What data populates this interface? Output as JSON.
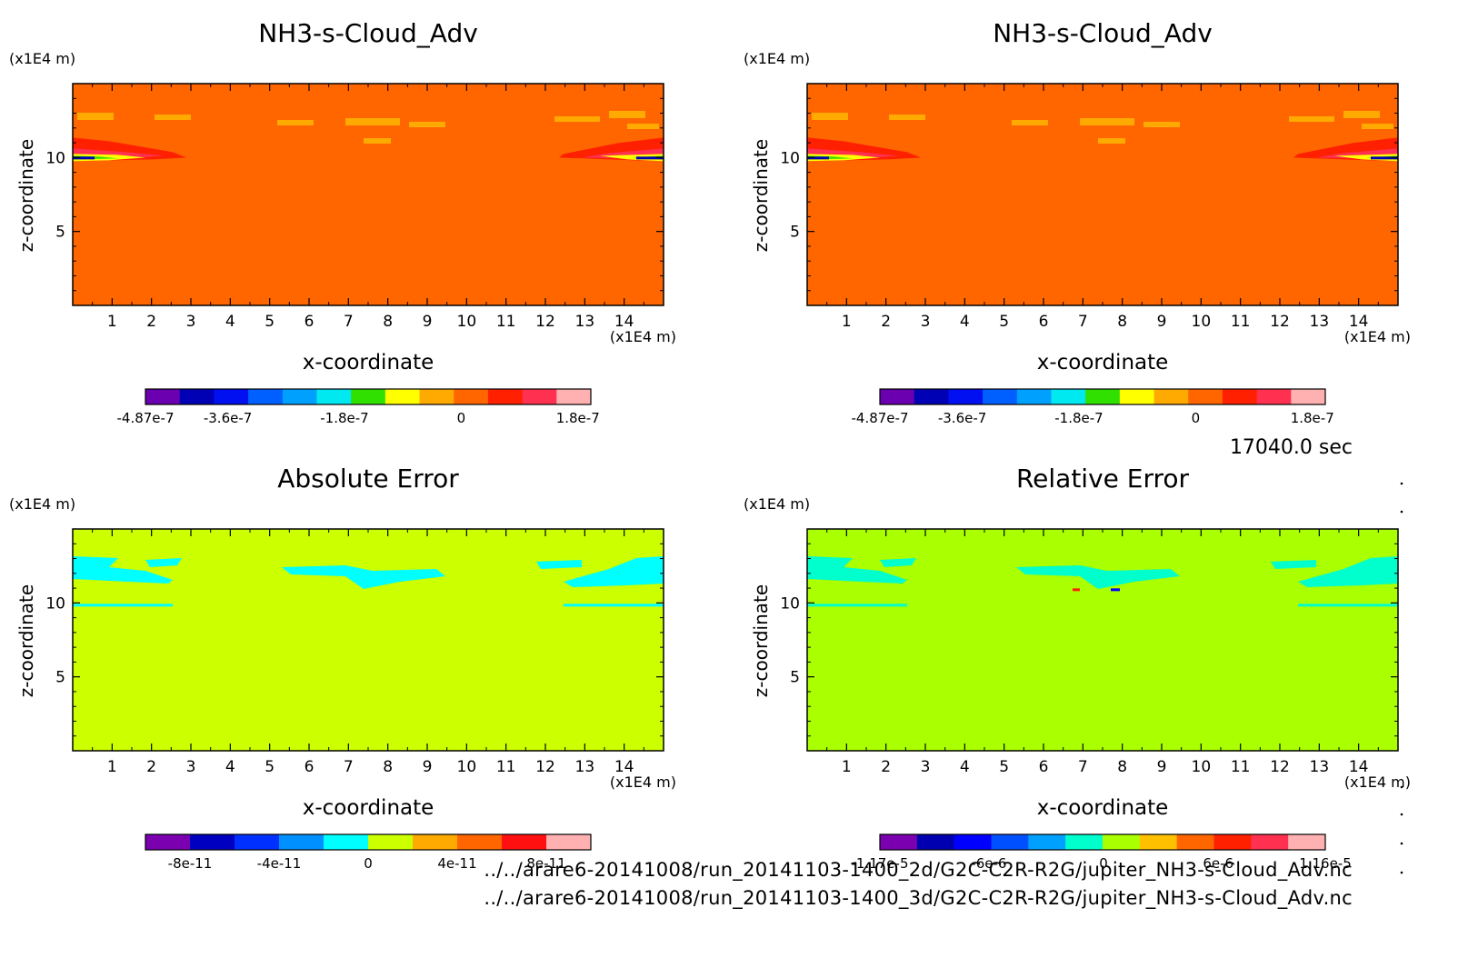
{
  "time_label": "17040.0 sec",
  "footer_lines": [
    "../../arare6-20141008/run_20141103-1400_2d/G2C-C2R-R2G/jupiter_NH3-s-Cloud_Adv.nc",
    "../../arare6-20141008/run_20141103-1400_3d/G2C-C2R-R2G/jupiter_NH3-s-Cloud_Adv.nc"
  ],
  "chart_data": [
    {
      "type": "heatmap",
      "title": "NH3-s-Cloud_Adv",
      "xlabel": "x-coordinate",
      "ylabel": "z-coordinate",
      "x_unit": "(x1E4 m)",
      "y_unit": "(x1E4 m)",
      "xlim": [
        0,
        15
      ],
      "ylim": [
        0,
        15
      ],
      "x_ticks": [
        1,
        2,
        3,
        4,
        5,
        6,
        7,
        8,
        9,
        10,
        11,
        12,
        13,
        14
      ],
      "y_ticks": [
        5,
        10
      ],
      "background_color": "#ff6600",
      "colorbar": {
        "colors": [
          "#6a00b0",
          "#0000b4",
          "#0010f0",
          "#0060ff",
          "#00a0ff",
          "#00e8f0",
          "#30e000",
          "#ffff00",
          "#ffaa00",
          "#ff6600",
          "#ff2000",
          "#ff3050",
          "#ffb0b0"
        ],
        "tick_labels": [
          "-4.87e-7",
          "-3.6e-7",
          "-1.8e-7",
          "0",
          "1.8e-7"
        ],
        "tick_values": [
          -4.87e-07,
          -3.6e-07,
          -1.8e-07,
          0,
          1.8e-07
        ],
        "range": [
          -4.87e-07,
          2e-07
        ]
      }
    },
    {
      "type": "heatmap",
      "title": "NH3-s-Cloud_Adv",
      "xlabel": "x-coordinate",
      "ylabel": "z-coordinate",
      "x_unit": "(x1E4 m)",
      "y_unit": "(x1E4 m)",
      "xlim": [
        0,
        15
      ],
      "ylim": [
        0,
        15
      ],
      "x_ticks": [
        1,
        2,
        3,
        4,
        5,
        6,
        7,
        8,
        9,
        10,
        11,
        12,
        13,
        14
      ],
      "y_ticks": [
        5,
        10
      ],
      "background_color": "#ff6600",
      "colorbar": {
        "colors": [
          "#6a00b0",
          "#0000b4",
          "#0010f0",
          "#0060ff",
          "#00a0ff",
          "#00e8f0",
          "#30e000",
          "#ffff00",
          "#ffaa00",
          "#ff6600",
          "#ff2000",
          "#ff3050",
          "#ffb0b0"
        ],
        "tick_labels": [
          "-4.87e-7",
          "-3.6e-7",
          "-1.8e-7",
          "0",
          "1.8e-7"
        ],
        "tick_values": [
          -4.87e-07,
          -3.6e-07,
          -1.8e-07,
          0,
          1.8e-07
        ],
        "range": [
          -4.87e-07,
          2e-07
        ]
      }
    },
    {
      "type": "heatmap",
      "title": "Absolute Error",
      "xlabel": "x-coordinate",
      "ylabel": "z-coordinate",
      "x_unit": "(x1E4 m)",
      "y_unit": "(x1E4 m)",
      "xlim": [
        0,
        15
      ],
      "ylim": [
        0,
        15
      ],
      "x_ticks": [
        1,
        2,
        3,
        4,
        5,
        6,
        7,
        8,
        9,
        10,
        11,
        12,
        13,
        14
      ],
      "y_ticks": [
        5,
        10
      ],
      "background_color": "#ccff00",
      "colorbar": {
        "colors": [
          "#7a00b0",
          "#0000c0",
          "#0030ff",
          "#0090ff",
          "#00ffff",
          "#ccff00",
          "#ffaa00",
          "#ff6600",
          "#ff1010",
          "#ffb0b0"
        ],
        "tick_labels": [
          "-8e-11",
          "-4e-11",
          "0",
          "4e-11",
          "8e-11"
        ],
        "tick_values": [
          -8e-11,
          -4e-11,
          0,
          4e-11,
          8e-11
        ],
        "range": [
          -1e-10,
          1e-10
        ]
      }
    },
    {
      "type": "heatmap",
      "title": "Relative Error",
      "xlabel": "x-coordinate",
      "ylabel": "z-coordinate",
      "x_unit": "(x1E4 m)",
      "y_unit": "(x1E4 m)",
      "xlim": [
        0,
        15
      ],
      "ylim": [
        0,
        15
      ],
      "x_ticks": [
        1,
        2,
        3,
        4,
        5,
        6,
        7,
        8,
        9,
        10,
        11,
        12,
        13,
        14
      ],
      "y_ticks": [
        5,
        10
      ],
      "background_color": "#aaff00",
      "colorbar": {
        "colors": [
          "#7a00b0",
          "#0000b0",
          "#0000ff",
          "#0050ff",
          "#00a0ff",
          "#00ffcc",
          "#aaff00",
          "#ffc000",
          "#ff6600",
          "#ff2000",
          "#ff3050",
          "#ffb0b0"
        ],
        "tick_labels": [
          "-1.17e-5",
          "-6e-6",
          "0",
          "6e-6",
          "1.16e-5"
        ],
        "tick_values": [
          -1.17e-05,
          -6e-06,
          0,
          6e-06,
          1.16e-05
        ],
        "range": [
          -1.17e-05,
          1.16e-05
        ]
      }
    }
  ]
}
